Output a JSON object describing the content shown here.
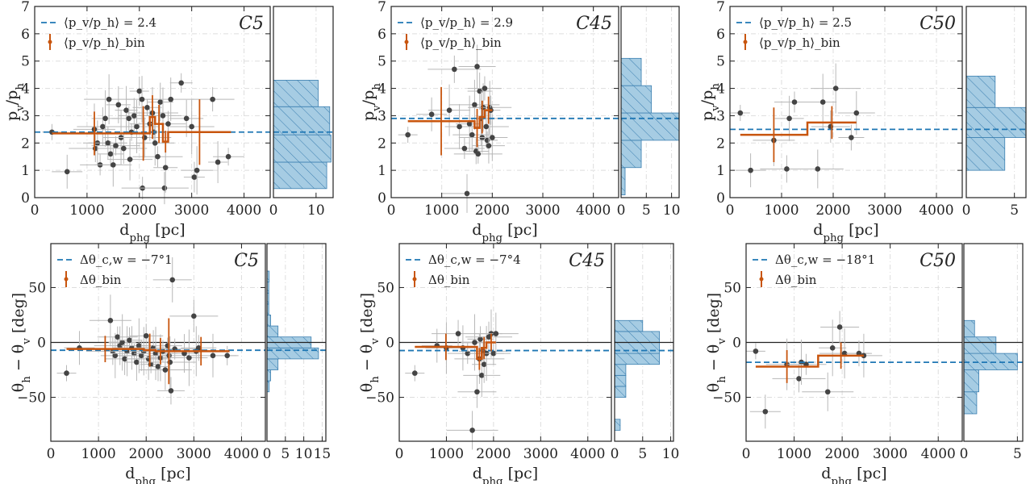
{
  "colors": {
    "scatter": "#444444",
    "bin": "#c8550e",
    "mean": "#1f77b4",
    "hist_fill": "#a6cce3",
    "hist_edge": "#3b7fb0",
    "err": "#b8b8b8"
  },
  "chart_data": [
    {
      "type": "scatter",
      "panel": "top-left",
      "tag": "C5",
      "xlabel": "d_phg [pc]",
      "ylabel": "p_v/p_h",
      "xlim": [
        0,
        4500
      ],
      "ylim": [
        0,
        7
      ],
      "xticks": [
        "0",
        "1000",
        "2000",
        "3000",
        "4000"
      ],
      "yticks": [
        "0",
        "1",
        "2",
        "3",
        "4",
        "5",
        "6",
        "7"
      ],
      "mean_label": "⟨p_v/p_h⟩ = 2.4",
      "mean": 2.4,
      "bin_label": "⟨p_v/p_h⟩_bin",
      "points": [
        [
          330,
          2.4
        ],
        [
          620,
          0.95
        ],
        [
          1140,
          2.5
        ],
        [
          1160,
          1.8
        ],
        [
          1200,
          2.0
        ],
        [
          1250,
          1.2
        ],
        [
          1300,
          2.6
        ],
        [
          1350,
          2.9
        ],
        [
          1400,
          2.0
        ],
        [
          1420,
          3.6
        ],
        [
          1450,
          1.6
        ],
        [
          1500,
          1.2
        ],
        [
          1550,
          1.9
        ],
        [
          1600,
          3.4
        ],
        [
          1650,
          2.2
        ],
        [
          1700,
          1.8
        ],
        [
          1750,
          3.2
        ],
        [
          1800,
          2.9
        ],
        [
          1820,
          1.4
        ],
        [
          1850,
          2.4
        ],
        [
          1900,
          3.0
        ],
        [
          1950,
          2.6
        ],
        [
          2000,
          3.9
        ],
        [
          2050,
          3.6
        ],
        [
          2060,
          0.35
        ],
        [
          2100,
          2.2
        ],
        [
          2150,
          3.3
        ],
        [
          2200,
          2.7
        ],
        [
          2250,
          3.1
        ],
        [
          2280,
          2.4
        ],
        [
          2300,
          2.0
        ],
        [
          2350,
          1.5
        ],
        [
          2400,
          3.5
        ],
        [
          2450,
          3.0
        ],
        [
          2480,
          0.35
        ],
        [
          2500,
          1.1
        ],
        [
          2550,
          2.7
        ],
        [
          2600,
          3.6
        ],
        [
          2800,
          4.2
        ],
        [
          2900,
          2.9
        ],
        [
          3000,
          2.6
        ],
        [
          3050,
          0.75
        ],
        [
          3100,
          1.0
        ],
        [
          3400,
          3.6
        ],
        [
          3500,
          1.3
        ],
        [
          3700,
          1.5
        ]
      ],
      "bins": [
        {
          "x0": 330,
          "x1": 1950,
          "y": 2.35,
          "yerr": 0.8
        },
        {
          "x0": 1950,
          "x1": 2200,
          "y": 2.35,
          "yerr": 1.0
        },
        {
          "x0": 2200,
          "x1": 2300,
          "y": 2.95,
          "yerr": 0.8
        },
        {
          "x0": 2300,
          "x1": 2450,
          "y": 2.7,
          "yerr": 0.7
        },
        {
          "x0": 2450,
          "x1": 2550,
          "y": 2.05,
          "yerr": 0.4
        },
        {
          "x0": 2550,
          "x1": 3750,
          "y": 2.4,
          "yerr": 1.2
        }
      ],
      "hist": {
        "xlim": [
          0,
          14
        ],
        "xticks": [
          "0",
          "10"
        ],
        "bins": [
          [
            0.33,
            1.3,
            12.5
          ],
          [
            1.3,
            2.3,
            13.5
          ],
          [
            2.3,
            3.33,
            13.2
          ],
          [
            3.33,
            4.3,
            10.5
          ]
        ]
      }
    },
    {
      "type": "scatter",
      "panel": "top-middle",
      "tag": "C45",
      "xlabel": "d_phg [pc]",
      "ylabel": "p_v/p_h",
      "xlim": [
        0,
        4500
      ],
      "ylim": [
        0,
        7
      ],
      "xticks": [
        "0",
        "1000",
        "2000",
        "3000",
        "4000"
      ],
      "yticks": [
        "0",
        "1",
        "2",
        "3",
        "4",
        "5",
        "6",
        "7"
      ],
      "mean_label": "⟨p_v/p_h⟩ = 2.9",
      "mean": 2.9,
      "bin_label": "⟨p_v/p_h⟩_bin",
      "points": [
        [
          330,
          2.3
        ],
        [
          800,
          3.05
        ],
        [
          1150,
          3.2
        ],
        [
          1250,
          4.7
        ],
        [
          1350,
          2.6
        ],
        [
          1450,
          1.8
        ],
        [
          1500,
          0.15
        ],
        [
          1550,
          2.7
        ],
        [
          1600,
          2.3
        ],
        [
          1650,
          3.4
        ],
        [
          1680,
          1.7
        ],
        [
          1700,
          4.8
        ],
        [
          1720,
          1.6
        ],
        [
          1750,
          3.9
        ],
        [
          1780,
          2.9
        ],
        [
          1800,
          2.2
        ],
        [
          1820,
          3.3
        ],
        [
          1850,
          4.0
        ],
        [
          1880,
          2.6
        ],
        [
          1900,
          2.1
        ],
        [
          1930,
          1.9
        ],
        [
          1950,
          3.3
        ],
        [
          1970,
          3.2
        ],
        [
          2000,
          2.2
        ]
      ],
      "bins": [
        {
          "x0": 330,
          "x1": 1650,
          "y": 2.8,
          "yerr": 1.25
        },
        {
          "x0": 1650,
          "x1": 1750,
          "y": 2.55,
          "yerr": 0.7
        },
        {
          "x0": 1750,
          "x1": 1850,
          "y": 2.95,
          "yerr": 0.6
        },
        {
          "x0": 1850,
          "x1": 2000,
          "y": 3.2,
          "yerr": 0.5
        }
      ],
      "hist": {
        "xlim": [
          0,
          11.5
        ],
        "xticks": [
          "0",
          "5",
          "10"
        ],
        "bins": [
          [
            0.1,
            1.1,
            0.8
          ],
          [
            1.1,
            2.1,
            4.0
          ],
          [
            2.1,
            3.1,
            11.5
          ],
          [
            3.1,
            4.1,
            6.0
          ],
          [
            4.1,
            5.1,
            4.0
          ]
        ]
      }
    },
    {
      "type": "scatter",
      "panel": "top-right",
      "tag": "C50",
      "xlabel": "d_phg [pc]",
      "ylabel": "p_v/p_h",
      "xlim": [
        0,
        4500
      ],
      "ylim": [
        0,
        7
      ],
      "xticks": [
        "0",
        "1000",
        "2000",
        "3000",
        "4000"
      ],
      "yticks": [
        "0",
        "1",
        "2",
        "3",
        "4",
        "5",
        "6",
        "7"
      ],
      "mean_label": "⟨p_v/p_h⟩ = 2.5",
      "mean": 2.5,
      "bin_label": "⟨p_v/p_h⟩_bin",
      "points": [
        [
          200,
          3.1
        ],
        [
          400,
          1.0
        ],
        [
          850,
          2.1
        ],
        [
          1100,
          1.05
        ],
        [
          1150,
          2.9
        ],
        [
          1250,
          3.5
        ],
        [
          1700,
          1.05
        ],
        [
          1800,
          3.5
        ],
        [
          1950,
          2.6
        ],
        [
          2050,
          4.0
        ],
        [
          2350,
          2.2
        ],
        [
          2450,
          3.1
        ]
      ],
      "bins": [
        {
          "x0": 200,
          "x1": 1500,
          "y": 2.3,
          "yerr": 1.0
        },
        {
          "x0": 1500,
          "x1": 2450,
          "y": 2.75,
          "yerr": 0.6
        }
      ],
      "hist": {
        "xlim": [
          0,
          6.2
        ],
        "xticks": [
          "0",
          "5"
        ],
        "bins": [
          [
            1.0,
            2.2,
            4.0
          ],
          [
            2.2,
            3.3,
            6.2
          ],
          [
            3.3,
            4.45,
            3.0
          ]
        ]
      }
    },
    {
      "type": "scatter",
      "panel": "bottom-left",
      "tag": "C5",
      "xlabel": "d_phg [pc]",
      "ylabel": "θ_h − θ_v [deg]",
      "xlim": [
        0,
        4500
      ],
      "ylim": [
        -90,
        90
      ],
      "xticks": [
        "0",
        "1000",
        "2000",
        "3000",
        "4000"
      ],
      "yticks": [
        "−50",
        "0",
        "50"
      ],
      "mean_label": "Δθ_c,w = −7°1",
      "mean": -7.1,
      "bin_label": "Δθ_bin",
      "points": [
        [
          330,
          -28
        ],
        [
          600,
          -5
        ],
        [
          1250,
          20
        ],
        [
          1300,
          -8
        ],
        [
          1350,
          -12
        ],
        [
          1400,
          5
        ],
        [
          1450,
          -3
        ],
        [
          1500,
          0
        ],
        [
          1550,
          -15
        ],
        [
          1600,
          -8
        ],
        [
          1650,
          2
        ],
        [
          1700,
          -5
        ],
        [
          1750,
          -10
        ],
        [
          1800,
          -18
        ],
        [
          1850,
          -3
        ],
        [
          1900,
          -12
        ],
        [
          1950,
          -8
        ],
        [
          2000,
          6
        ],
        [
          2050,
          -15
        ],
        [
          2100,
          -20
        ],
        [
          2150,
          -5
        ],
        [
          2200,
          -10
        ],
        [
          2250,
          -22
        ],
        [
          2300,
          -14
        ],
        [
          2350,
          -8
        ],
        [
          2400,
          -25
        ],
        [
          2450,
          -3
        ],
        [
          2480,
          -12
        ],
        [
          2500,
          -18
        ],
        [
          2520,
          -44
        ],
        [
          2550,
          57
        ],
        [
          2600,
          -6
        ],
        [
          2800,
          -10
        ],
        [
          2900,
          -14
        ],
        [
          3000,
          24
        ],
        [
          3050,
          -8
        ],
        [
          3100,
          -5
        ],
        [
          3400,
          -12
        ],
        [
          3700,
          -12
        ]
      ],
      "bins": [
        {
          "x0": 330,
          "x1": 1950,
          "y": -6,
          "yerr": 12
        },
        {
          "x0": 1950,
          "x1": 2200,
          "y": -7,
          "yerr": 15
        },
        {
          "x0": 2200,
          "x1": 2400,
          "y": -8,
          "yerr": 12
        },
        {
          "x0": 2400,
          "x1": 2550,
          "y": -8,
          "yerr": 30
        },
        {
          "x0": 2550,
          "x1": 3750,
          "y": -8,
          "yerr": 13
        }
      ],
      "hist": {
        "xlim": [
          0,
          16
        ],
        "xticks": [
          "0",
          "5",
          "10",
          "15"
        ],
        "bins": [
          [
            -45,
            -35,
            0.6
          ],
          [
            -35,
            -25,
            1
          ],
          [
            -25,
            -15,
            3
          ],
          [
            -15,
            -5,
            14
          ],
          [
            -5,
            5,
            12
          ],
          [
            5,
            15,
            3
          ],
          [
            15,
            25,
            1
          ],
          [
            25,
            35,
            0.5
          ],
          [
            35,
            45,
            0.5
          ],
          [
            45,
            55,
            0.5
          ],
          [
            55,
            65,
            0.6
          ]
        ]
      }
    },
    {
      "type": "scatter",
      "panel": "bottom-middle",
      "tag": "C45",
      "xlabel": "d_phg [pc]",
      "ylabel": "θ_h − θ_v [deg]",
      "xlim": [
        0,
        4500
      ],
      "ylim": [
        -90,
        90
      ],
      "xticks": [
        "0",
        "1000",
        "2000",
        "3000",
        "4000"
      ],
      "yticks": [
        "−50",
        "0",
        "50"
      ],
      "mean_label": "Δθ_c,w = −7°4",
      "mean": -7.4,
      "bin_label": "Δθ_bin",
      "points": [
        [
          330,
          -28
        ],
        [
          800,
          -3
        ],
        [
          1000,
          -5
        ],
        [
          1250,
          8
        ],
        [
          1350,
          -5
        ],
        [
          1450,
          -10
        ],
        [
          1550,
          -80
        ],
        [
          1600,
          0
        ],
        [
          1650,
          -45
        ],
        [
          1700,
          -15
        ],
        [
          1720,
          3
        ],
        [
          1750,
          -30
        ],
        [
          1780,
          -8
        ],
        [
          1800,
          -20
        ],
        [
          1850,
          -10
        ],
        [
          1900,
          5
        ],
        [
          1950,
          8
        ],
        [
          2000,
          -10
        ],
        [
          2050,
          8
        ]
      ],
      "bins": [
        {
          "x0": 330,
          "x1": 1650,
          "y": -4,
          "yerr": 12
        },
        {
          "x0": 1650,
          "x1": 1750,
          "y": -15,
          "yerr": 10
        },
        {
          "x0": 1750,
          "x1": 1850,
          "y": -5,
          "yerr": 10
        },
        {
          "x0": 1850,
          "x1": 2050,
          "y": 0,
          "yerr": 8
        }
      ],
      "hist": {
        "xlim": [
          0,
          10.5
        ],
        "xticks": [
          "0",
          "5",
          "10"
        ],
        "bins": [
          [
            -80,
            -70,
            1
          ],
          [
            -50,
            -40,
            2
          ],
          [
            -40,
            -30,
            2
          ],
          [
            -30,
            -20,
            2
          ],
          [
            -20,
            -10,
            8
          ],
          [
            -10,
            0,
            8
          ],
          [
            0,
            10,
            8
          ],
          [
            10,
            20,
            5
          ]
        ]
      }
    },
    {
      "type": "scatter",
      "panel": "bottom-right",
      "tag": "C50",
      "xlabel": "d_phg [pc]",
      "ylabel": "θ_h − θ_v [deg]",
      "xlim": [
        0,
        4500
      ],
      "ylim": [
        -90,
        90
      ],
      "xticks": [
        "0",
        "1000",
        "2000",
        "3000",
        "4000"
      ],
      "yticks": [
        "−50",
        "0",
        "50"
      ],
      "mean_label": "Δθ_c,w = −18°1",
      "mean": -18.1,
      "bin_label": "Δθ_bin",
      "points": [
        [
          200,
          -8
        ],
        [
          400,
          -63
        ],
        [
          850,
          -20
        ],
        [
          1100,
          -33
        ],
        [
          1150,
          -18
        ],
        [
          1250,
          -20
        ],
        [
          1700,
          -45
        ],
        [
          1800,
          -5
        ],
        [
          1950,
          14
        ],
        [
          2050,
          -10
        ],
        [
          2350,
          -10
        ],
        [
          2450,
          -12
        ]
      ],
      "bins": [
        {
          "x0": 200,
          "x1": 1500,
          "y": -22,
          "yerr": 15
        },
        {
          "x0": 1500,
          "x1": 2450,
          "y": -12,
          "yerr": 12
        }
      ],
      "hist": {
        "xlim": [
          0,
          5.5
        ],
        "xticks": [
          "0",
          "5"
        ],
        "bins": [
          [
            -65,
            -45,
            1.2
          ],
          [
            -45,
            -25,
            1.4
          ],
          [
            -25,
            -10,
            5
          ],
          [
            -10,
            5,
            3
          ],
          [
            5,
            20,
            1
          ]
        ]
      }
    }
  ]
}
